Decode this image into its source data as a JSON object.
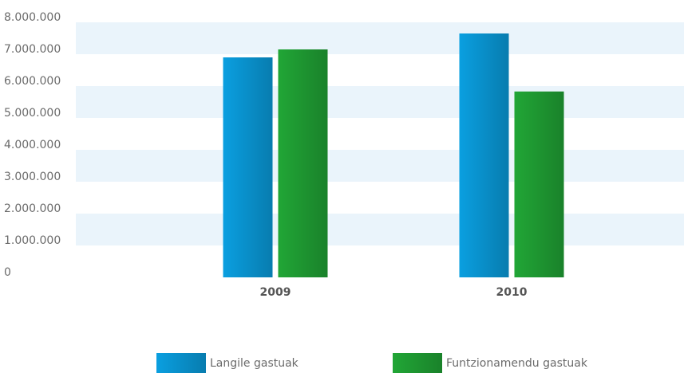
{
  "chart_data": {
    "type": "bar",
    "categories": [
      "2009",
      "2010"
    ],
    "series": [
      {
        "name": "Langile gastuak",
        "color": "#0a9fe0",
        "values": [
          6900000,
          7650000
        ]
      },
      {
        "name": "Funtzionamendu gastuak",
        "color": "#21a636",
        "values": [
          7150000,
          5830000
        ]
      }
    ],
    "ylim": [
      0,
      8000000
    ],
    "yticks": [
      0,
      {
        "value": 1000000,
        "label": "1.000.000"
      },
      {
        "value": 2000000,
        "label": "2.000.000"
      },
      {
        "value": 3000000,
        "label": "3.000.000"
      },
      {
        "value": 4000000,
        "label": "4.000.000"
      },
      {
        "value": 5000000,
        "label": "5.000.000"
      },
      {
        "value": 6000000,
        "label": "6.000.000"
      },
      {
        "value": 7000000,
        "label": "7.000.000"
      },
      {
        "value": 8000000,
        "label": "8.000.000"
      }
    ],
    "grid": true,
    "legend": "bottom"
  }
}
